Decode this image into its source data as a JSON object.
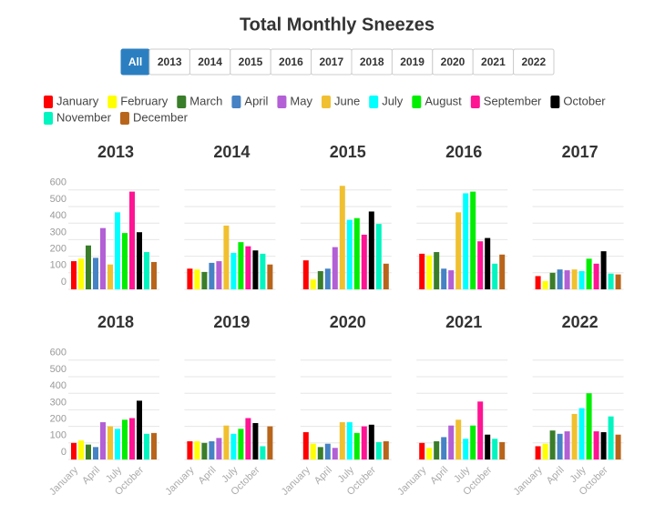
{
  "title": "Total Monthly Sneezes",
  "filters": {
    "options": [
      "All",
      "2013",
      "2014",
      "2015",
      "2016",
      "2017",
      "2018",
      "2019",
      "2020",
      "2021",
      "2022"
    ],
    "selected": 0
  },
  "legend": {
    "names": [
      "January",
      "February",
      "March",
      "April",
      "May",
      "June",
      "July",
      "August",
      "September",
      "October",
      "November",
      "December"
    ],
    "colors": [
      "#ff0000",
      "#ffff00",
      "#3a7d2a",
      "#4682c4",
      "#b35fd6",
      "#f0c030",
      "#00ffff",
      "#00ee00",
      "#ff1493",
      "#000000",
      "#00f5c0",
      "#b8651b"
    ]
  },
  "chart_data": [
    {
      "type": "bar",
      "title": "2013",
      "values": [
        170,
        185,
        265,
        190,
        370,
        150,
        465,
        340,
        590,
        345,
        225,
        165
      ],
      "ylim": [
        0,
        650
      ],
      "yticks": [
        0,
        100,
        200,
        300,
        400,
        500,
        600
      ],
      "ytick_labels": true,
      "grid": true
    },
    {
      "type": "bar",
      "title": "2014",
      "values": [
        125,
        120,
        105,
        160,
        170,
        385,
        220,
        285,
        260,
        235,
        215,
        150
      ],
      "ylim": [
        0,
        650
      ],
      "yticks": [
        0,
        100,
        200,
        300,
        400,
        500,
        600
      ],
      "ytick_labels": false,
      "grid": true
    },
    {
      "type": "bar",
      "title": "2015",
      "values": [
        175,
        60,
        110,
        125,
        255,
        625,
        420,
        430,
        330,
        470,
        395,
        155
      ],
      "ylim": [
        0,
        650
      ],
      "yticks": [
        0,
        100,
        200,
        300,
        400,
        500,
        600
      ],
      "ytick_labels": false,
      "grid": true
    },
    {
      "type": "bar",
      "title": "2016",
      "values": [
        215,
        205,
        225,
        125,
        115,
        465,
        580,
        590,
        290,
        310,
        155,
        210
      ],
      "ylim": [
        0,
        650
      ],
      "yticks": [
        0,
        100,
        200,
        300,
        400,
        500,
        600
      ],
      "ytick_labels": false,
      "grid": true
    },
    {
      "type": "bar",
      "title": "2017",
      "values": [
        80,
        50,
        100,
        120,
        115,
        120,
        110,
        185,
        155,
        230,
        95,
        90
      ],
      "ylim": [
        0,
        650
      ],
      "yticks": [
        0,
        100,
        200,
        300,
        400,
        500,
        600
      ],
      "ytick_labels": false,
      "grid": true
    },
    {
      "type": "bar",
      "title": "2018",
      "categories": [
        "January",
        null,
        null,
        "April",
        null,
        null,
        "July",
        null,
        null,
        "October",
        null,
        null
      ],
      "values": [
        100,
        115,
        90,
        75,
        225,
        200,
        185,
        240,
        250,
        355,
        155,
        160
      ],
      "ylim": [
        0,
        650
      ],
      "yticks": [
        0,
        100,
        200,
        300,
        400,
        500,
        600
      ],
      "ytick_labels": true,
      "grid": true
    },
    {
      "type": "bar",
      "title": "2019",
      "categories": [
        "January",
        null,
        null,
        "April",
        null,
        null,
        "July",
        null,
        null,
        "October",
        null,
        null
      ],
      "values": [
        110,
        110,
        100,
        110,
        130,
        205,
        155,
        185,
        250,
        220,
        80,
        200
      ],
      "ylim": [
        0,
        650
      ],
      "yticks": [
        0,
        100,
        200,
        300,
        400,
        500,
        600
      ],
      "ytick_labels": false,
      "grid": true
    },
    {
      "type": "bar",
      "title": "2020",
      "categories": [
        "January",
        null,
        null,
        "April",
        null,
        null,
        "July",
        null,
        null,
        "October",
        null,
        null
      ],
      "values": [
        165,
        95,
        75,
        95,
        70,
        225,
        225,
        160,
        200,
        210,
        105,
        110
      ],
      "ylim": [
        0,
        650
      ],
      "yticks": [
        0,
        100,
        200,
        300,
        400,
        500,
        600
      ],
      "ytick_labels": false,
      "grid": true
    },
    {
      "type": "bar",
      "title": "2021",
      "categories": [
        "January",
        null,
        null,
        "April",
        null,
        null,
        "July",
        null,
        null,
        "October",
        null,
        null
      ],
      "values": [
        100,
        70,
        110,
        135,
        205,
        240,
        125,
        205,
        350,
        150,
        125,
        105
      ],
      "ylim": [
        0,
        650
      ],
      "yticks": [
        0,
        100,
        200,
        300,
        400,
        500,
        600
      ],
      "ytick_labels": false,
      "grid": true
    },
    {
      "type": "bar",
      "title": "2022",
      "categories": [
        "January",
        null,
        null,
        "April",
        null,
        null,
        "July",
        null,
        null,
        "October",
        null,
        null
      ],
      "values": [
        80,
        95,
        175,
        155,
        170,
        275,
        310,
        400,
        170,
        165,
        260,
        150
      ],
      "ylim": [
        0,
        650
      ],
      "yticks": [
        0,
        100,
        200,
        300,
        400,
        500,
        600
      ],
      "ytick_labels": false,
      "grid": true
    }
  ]
}
